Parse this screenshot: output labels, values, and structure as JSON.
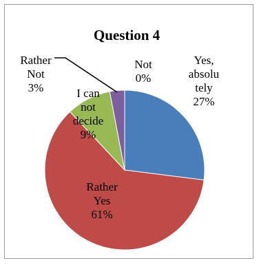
{
  "chart_data": {
    "type": "pie",
    "title": "Question 4",
    "legend": "none",
    "slices": [
      {
        "name": "Yes, absolutely",
        "value": 27,
        "label_lines": [
          "Yes,",
          "absolu",
          "tely",
          "27%"
        ],
        "color": "#4a7ebb"
      },
      {
        "name": "Rather Yes",
        "value": 61,
        "label_lines": [
          "Rather",
          "Yes",
          "61%"
        ],
        "color": "#be4b48"
      },
      {
        "name": "I can not decide",
        "value": 9,
        "label_lines": [
          "I can",
          "not",
          "decide",
          "9%"
        ],
        "color": "#98b954"
      },
      {
        "name": "Rather Not",
        "value": 3,
        "label_lines": [
          "Rather",
          "Not",
          "3%"
        ],
        "color": "#7d5fa0"
      },
      {
        "name": "Not",
        "value": 0,
        "label_lines": [
          "Not",
          "0%"
        ],
        "color": "#46aac5"
      }
    ]
  }
}
